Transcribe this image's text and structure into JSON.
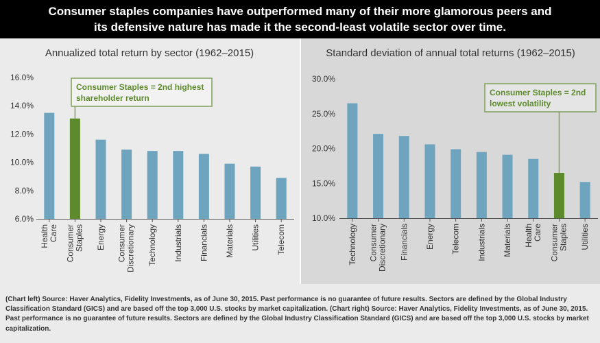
{
  "banner": {
    "line1": "Consumer staples companies have outperformed many of their more glamorous peers and",
    "line2": "its defensive nature has made it the second-least volatile sector over time."
  },
  "colors": {
    "bar": "#6fa4bf",
    "highlight": "#5d8a2c",
    "annotation_border": "#7fa05a",
    "annotation_text": "#5d8a2c"
  },
  "chart_data": [
    {
      "type": "bar",
      "title": "Annualized total return by sector (1962–2015)",
      "categories": [
        "Health Care",
        "Consumer Staples",
        "Energy",
        "Consumer Discretionary",
        "Technology",
        "Industrials",
        "Financials",
        "Materials",
        "Utilities",
        "Telecom"
      ],
      "values": [
        13.5,
        13.1,
        11.6,
        10.9,
        10.8,
        10.8,
        10.6,
        9.9,
        9.7,
        8.9
      ],
      "highlight_index": 1,
      "ylim": [
        6,
        16
      ],
      "yticks": [
        "6.0%",
        "8.0%",
        "10.0%",
        "12.0%",
        "14.0%",
        "16.0%"
      ],
      "annotation": [
        "Consumer Staples = 2nd highest",
        "shareholder return"
      ],
      "grid": false
    },
    {
      "type": "bar",
      "title": "Standard deviation of annual total returns (1962–2015)",
      "categories": [
        "Technology",
        "Consumer Discretionary",
        "Financials",
        "Energy",
        "Telecom",
        "Industrials",
        "Materials",
        "Health Care",
        "Consumer Staples",
        "Utilities"
      ],
      "values": [
        26.5,
        22.1,
        21.8,
        20.6,
        19.9,
        19.5,
        19.1,
        18.5,
        16.5,
        15.2
      ],
      "highlight_index": 8,
      "ylim": [
        10,
        30
      ],
      "yticks": [
        "10.0%",
        "15.0%",
        "20.0%",
        "25.0%",
        "30.0%"
      ],
      "annotation": [
        "Consumer Staples = 2nd",
        "lowest volatility"
      ],
      "grid": false
    }
  ],
  "footer": {
    "text": "(Chart left) Source: Haver Analytics, Fidelity Investments, as of June 30, 2015. Past performance is no guarantee of future results. Sectors are defined by the Global Industry Classification Standard (GICS) and are based off the top 3,000 U.S. stocks by market capitalization. (Chart right) Source: Haver Analytics, Fidelity Investments, as of June 30, 2015. Past performance is no guarantee of future results. Sectors are defined by the Global Industry Classification Standard (GICS) and are based off the top 3,000 U.S. stocks by market capitalization."
  }
}
